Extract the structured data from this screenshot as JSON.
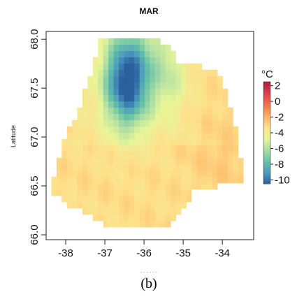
{
  "chart_data": {
    "type": "heatmap",
    "title": "MAR",
    "ylabel": "Latitude",
    "xlabel": "",
    "caption": "(b)",
    "x_ticks": [
      -38,
      -37,
      -36,
      -35,
      -34
    ],
    "y_ticks": [
      66.0,
      66.5,
      67.0,
      67.5,
      68.0
    ],
    "y_tick_labels": [
      "66.0",
      "66.5",
      "67.0",
      "67.5",
      "68.0"
    ],
    "xlim": [
      -38.5,
      -33.2
    ],
    "ylim": [
      65.95,
      68.08
    ],
    "colorbar": {
      "unit": "°C",
      "ticks": [
        2,
        0,
        -2,
        -4,
        -6,
        -8,
        -10
      ],
      "tick_labels": [
        "2",
        "0",
        "-2",
        "-4",
        "-6",
        "-8",
        "-10"
      ],
      "range": [
        -10.5,
        2.5
      ],
      "colors": [
        "#2c5f9e",
        "#4c9cc0",
        "#66c2a5",
        "#abdda4",
        "#e6f598",
        "#fee08b",
        "#fdae61",
        "#f46d43",
        "#d53e4f",
        "#b01b3a"
      ]
    },
    "grid": {
      "x0": -38.5,
      "y0": 65.95,
      "dx": 0.1325,
      "dy": 0.0644,
      "cols": 40,
      "rows": 33
    },
    "field_note": "Approximate temperature field (°C): cold north-west core near -10, warmer south-east near -3.5"
  }
}
